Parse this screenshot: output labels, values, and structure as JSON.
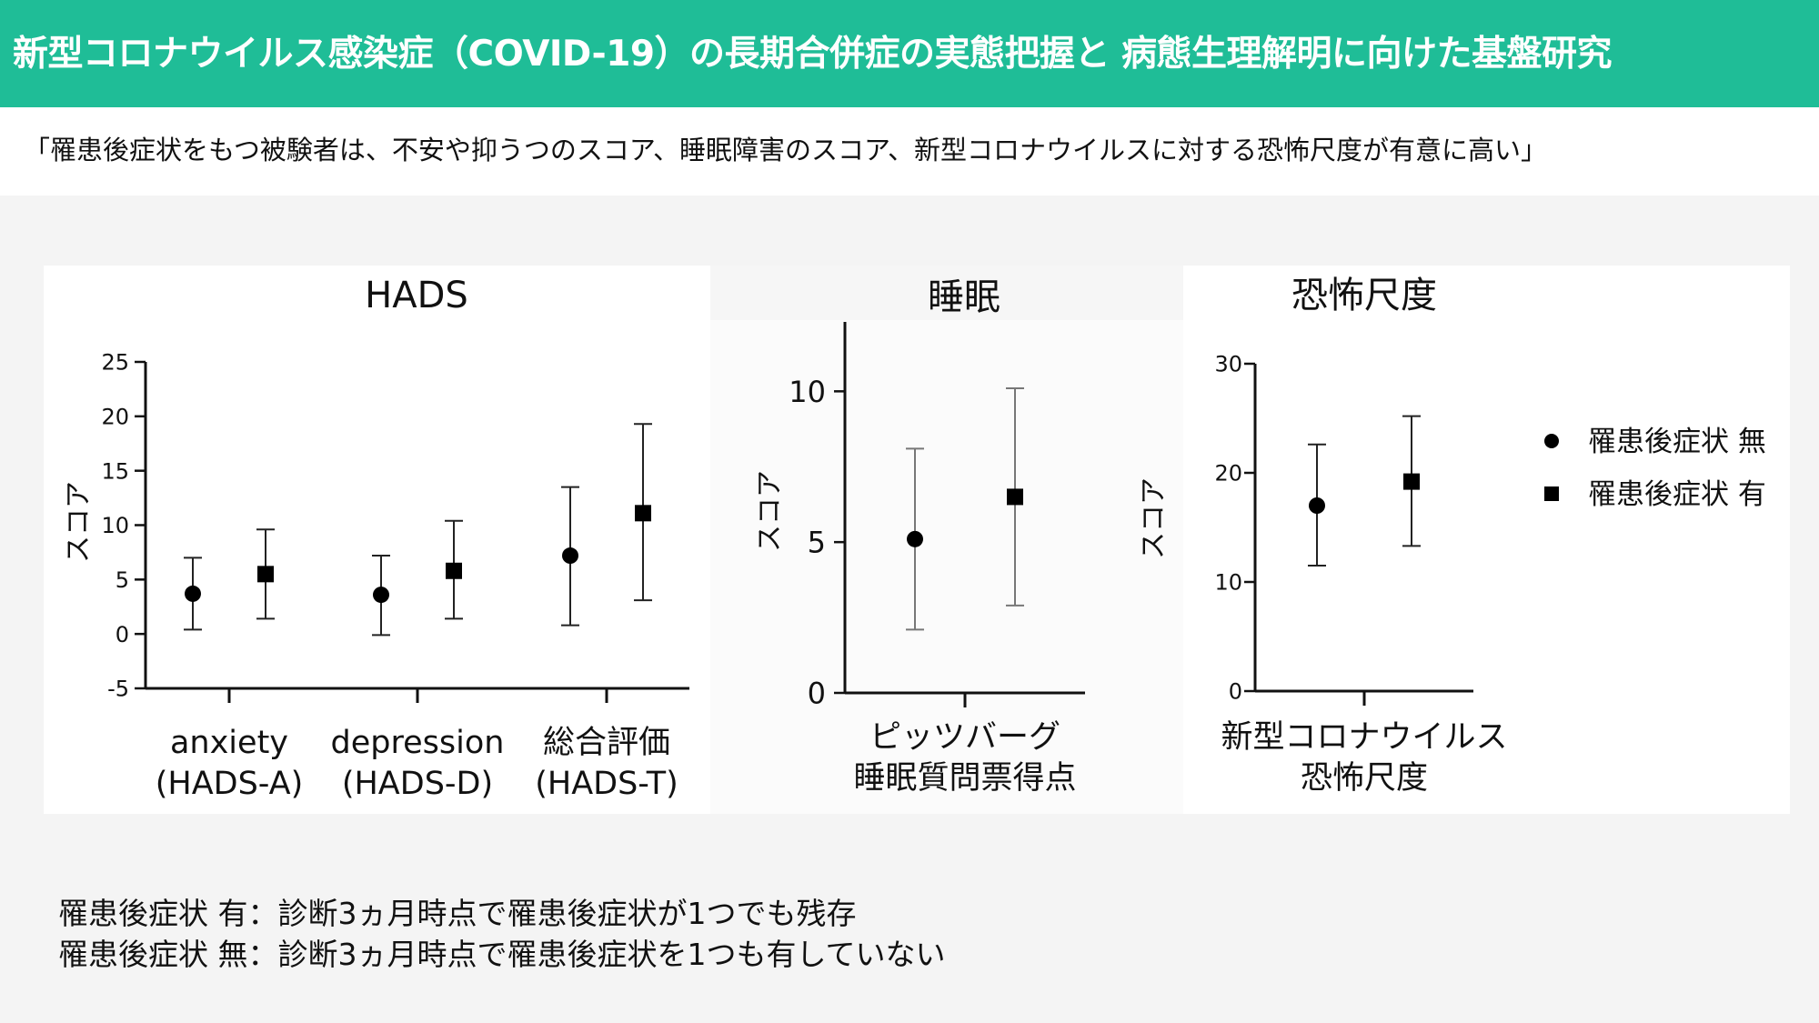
{
  "header": {
    "title": "新型コロナウイルス感染症（COVID-19）の長期合併症の実態把握と 病態生理解明に向けた基盤研究",
    "bg_color": "#1fbd97"
  },
  "subtitle": "「罹患後症状をもつ被験者は、不安や抑うつのスコア、睡眠障害のスコア、新型コロナウイルスに対する恐怖尺度が有意に高い」",
  "legend": {
    "placement": "right",
    "items": [
      {
        "marker": "circle",
        "label": "罹患後症状 無"
      },
      {
        "marker": "square",
        "label": "罹患後症状 有"
      }
    ]
  },
  "footnotes": [
    "罹患後症状 有：診断3ヵ月時点で罹患後症状が1つでも残存",
    "罹患後症状 無：診断3ヵ月時点で罹患後症状を1つも有していない"
  ],
  "chart_data": [
    {
      "type": "scatter",
      "title": "HADS",
      "ylabel": "スコア",
      "ylim": [
        -5,
        25
      ],
      "yticks": [
        -5,
        0,
        5,
        10,
        15,
        20,
        25
      ],
      "categories": [
        {
          "label": [
            "anxiety",
            "(HADS-A)"
          ]
        },
        {
          "label": [
            "depression",
            "(HADS-D)"
          ]
        },
        {
          "label": [
            "総合評価",
            "(HADS-T)"
          ]
        }
      ],
      "series": [
        {
          "name": "罹患後症状 無",
          "marker": "circle",
          "values": [
            3.7,
            3.6,
            7.2
          ],
          "err_low": [
            0.4,
            -0.1,
            0.8
          ],
          "err_high": [
            7.0,
            7.2,
            13.5
          ]
        },
        {
          "name": "罹患後症状 有",
          "marker": "square",
          "values": [
            5.5,
            5.8,
            11.1
          ],
          "err_low": [
            1.4,
            1.4,
            3.1
          ],
          "err_high": [
            9.6,
            10.4,
            19.3
          ]
        }
      ]
    },
    {
      "type": "scatter",
      "title": "睡眠",
      "ylabel": "スコア",
      "ylim": [
        0,
        12
      ],
      "yticks": [
        0,
        5,
        10
      ],
      "categories": [
        {
          "label": [
            "ピッツバーグ",
            "睡眠質問票得点"
          ]
        }
      ],
      "series": [
        {
          "name": "罹患後症状 無",
          "marker": "circle",
          "values": [
            5.1
          ],
          "err_low": [
            2.1
          ],
          "err_high": [
            8.1
          ]
        },
        {
          "name": "罹患後症状 有",
          "marker": "square",
          "values": [
            6.5
          ],
          "err_low": [
            2.9
          ],
          "err_high": [
            10.1
          ]
        }
      ]
    },
    {
      "type": "scatter",
      "title": "恐怖尺度",
      "ylabel": "スコア",
      "ylim": [
        0,
        30
      ],
      "yticks": [
        0,
        10,
        20,
        30
      ],
      "categories": [
        {
          "label": [
            "新型コロナウイルス",
            "恐怖尺度"
          ]
        }
      ],
      "series": [
        {
          "name": "罹患後症状 無",
          "marker": "circle",
          "values": [
            17.0
          ],
          "err_low": [
            11.5
          ],
          "err_high": [
            22.6
          ]
        },
        {
          "name": "罹患後症状 有",
          "marker": "square",
          "values": [
            19.2
          ],
          "err_low": [
            13.3
          ],
          "err_high": [
            25.2
          ]
        }
      ]
    }
  ]
}
